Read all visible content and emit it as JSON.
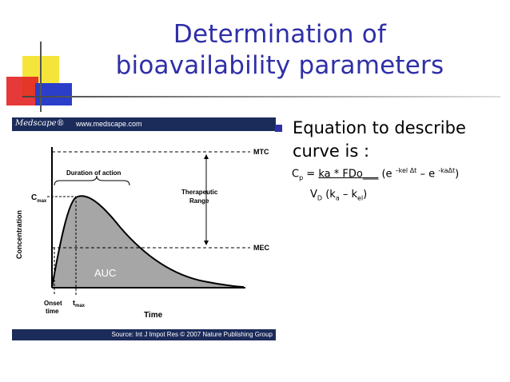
{
  "slide": {
    "title_line1": "Determination of",
    "title_line2": "bioavailability parameters",
    "accent_color": "#2f2fa8"
  },
  "figure": {
    "header_logo": "Medscape®",
    "header_url": "www.medscape.com",
    "footer_source": "Source: Int J Impot Res © 2007 Nature Publishing Group",
    "labels": {
      "mtc": "MTC",
      "mec": "MEC",
      "duration": "Duration of action",
      "therapeutic_line1": "Therapeutic",
      "therapeutic_line2": "Range",
      "cmax": "C",
      "cmax_sub": "max",
      "concentration": "Concentration",
      "auc": "AUC",
      "onset_line1": "Onset",
      "onset_line2": "time",
      "tmax": "t",
      "tmax_sub": "max",
      "time": "Time"
    }
  },
  "bullet": {
    "text": "Equation to describe curve is :",
    "eq1": {
      "cp": "C",
      "cp_sub": "p",
      "equals": " = ",
      "numerator": "ka * FDo",
      "blank": "___",
      "open": " (e ",
      "exp1": "–kel Δt",
      "minus": " – e ",
      "exp2": "-kaΔt",
      "close": ")"
    },
    "eq2": {
      "vd": "V",
      "vd_sub": "D",
      "open": " (k",
      "ka_sub": "a",
      "minus": " – k",
      "kel_sub": "el",
      "close": ")"
    }
  }
}
